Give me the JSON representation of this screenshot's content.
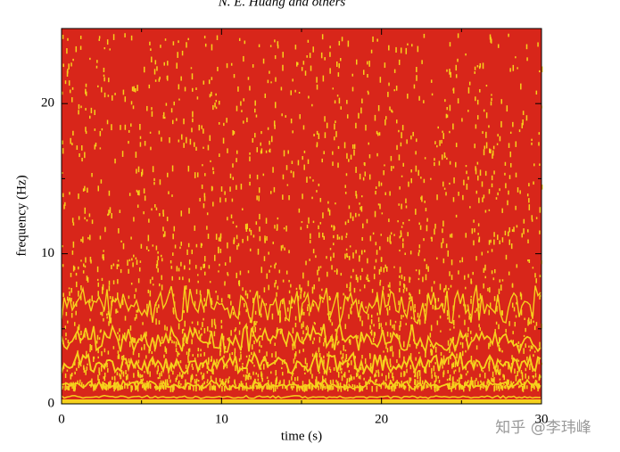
{
  "header": "N. E. Huang and others",
  "watermark": "知乎 @李玮峰",
  "chart_data": {
    "type": "spectrogram",
    "xlabel": "time (s)",
    "ylabel": "frequency (Hz)",
    "xlim": [
      0,
      30
    ],
    "xticks": [
      0,
      10,
      20,
      30
    ],
    "xminor": [
      5,
      15,
      25
    ],
    "ylim": [
      0,
      25
    ],
    "yticks": [
      0,
      10,
      20
    ],
    "yminor": [
      5,
      15,
      25
    ],
    "background_color": "#d8261a",
    "ridge_color": "#f6d01c"
  }
}
